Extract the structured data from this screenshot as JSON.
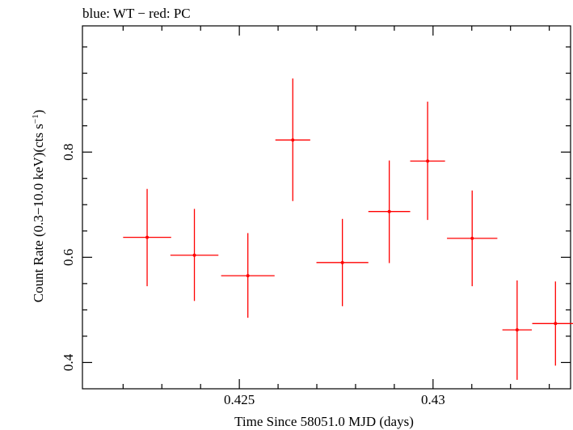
{
  "chart_data": {
    "type": "scatter",
    "title": "blue: WT − red: PC",
    "xlabel": "Time Since 58051.0 MJD (days)",
    "ylabel": "Count Rate (0.3−10.0 keV)(cts s",
    "ylabel_sup": "−1",
    "ylabel_tail": ")",
    "xlim": [
      0.42095,
      0.43355
    ],
    "ylim": [
      0.35,
      1.04
    ],
    "x_major_ticks": [
      0.425,
      0.43
    ],
    "x_tick_labels": [
      "0.425",
      "0.43"
    ],
    "x_minor_ticks": [
      0.422,
      0.423,
      0.424,
      0.426,
      0.427,
      0.428,
      0.429,
      0.431,
      0.432,
      0.433
    ],
    "y_major_ticks": [
      0.4,
      0.6,
      0.8
    ],
    "y_tick_labels": [
      "0.4",
      "0.6",
      "0.8"
    ],
    "y_minor_ticks": [
      0.45,
      0.5,
      0.55,
      0.65,
      0.7,
      0.75,
      0.85,
      0.9,
      0.95,
      1.0
    ],
    "series": [
      {
        "color": "#ff0000",
        "points": [
          {
            "x": 0.42262,
            "xerr": 0.00062,
            "y": 0.638,
            "yerr_lo": 0.093,
            "yerr_hi": 0.092
          },
          {
            "x": 0.42384,
            "xerr": 0.00062,
            "y": 0.604,
            "yerr_lo": 0.087,
            "yerr_hi": 0.088
          },
          {
            "x": 0.42522,
            "xerr": 0.00069,
            "y": 0.565,
            "yerr_lo": 0.08,
            "yerr_hi": 0.081
          },
          {
            "x": 0.42638,
            "xerr": 0.00045,
            "y": 0.823,
            "yerr_lo": 0.116,
            "yerr_hi": 0.117
          },
          {
            "x": 0.42766,
            "xerr": 0.00067,
            "y": 0.59,
            "yerr_lo": 0.083,
            "yerr_hi": 0.083
          },
          {
            "x": 0.42887,
            "xerr": 0.00054,
            "y": 0.687,
            "yerr_lo": 0.098,
            "yerr_hi": 0.097
          },
          {
            "x": 0.42986,
            "xerr": 0.00045,
            "y": 0.783,
            "yerr_lo": 0.112,
            "yerr_hi": 0.113
          },
          {
            "x": 0.43101,
            "xerr": 0.00065,
            "y": 0.636,
            "yerr_lo": 0.091,
            "yerr_hi": 0.091
          },
          {
            "x": 0.43217,
            "xerr": 0.00038,
            "y": 0.462,
            "yerr_lo": 0.095,
            "yerr_hi": 0.094
          },
          {
            "x": 0.43316,
            "xerr": 0.0006,
            "y": 0.474,
            "yerr_lo": 0.08,
            "yerr_hi": 0.08
          }
        ]
      }
    ]
  }
}
